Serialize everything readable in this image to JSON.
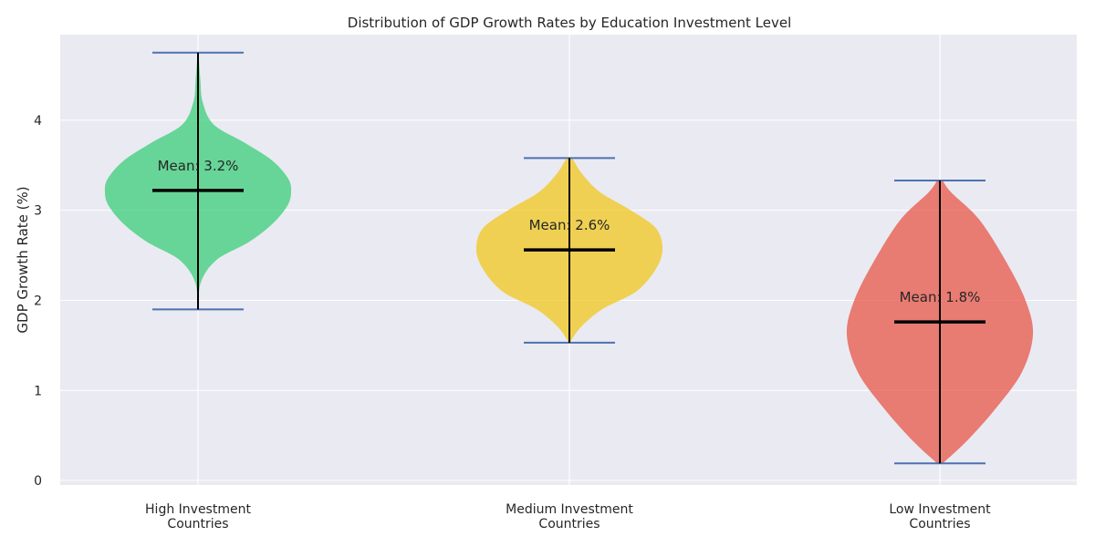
{
  "chart_data": {
    "type": "violin",
    "title": "Distribution of GDP Growth Rates by Education Investment Level",
    "ylabel": "GDP Growth Rate (%)",
    "xlabel": "",
    "ylim": [
      -0.05,
      4.95
    ],
    "yticks": [
      0,
      1,
      2,
      3,
      4
    ],
    "grid": true,
    "colors": {
      "background": "#eaeaf2",
      "grid": "#ffffff",
      "extrema": "#4c72b0",
      "mean": "#000000"
    },
    "series": [
      {
        "category_lines": [
          "High Investment",
          "Countries"
        ],
        "color": "#2ecc71",
        "min": 1.9,
        "max": 4.75,
        "mean": 3.22,
        "mean_label": "Mean: 3.2%",
        "profile": [
          [
            1.9,
            0.005
          ],
          [
            2.2,
            0.03
          ],
          [
            2.45,
            0.2
          ],
          [
            2.65,
            0.55
          ],
          [
            2.85,
            0.8
          ],
          [
            3.05,
            0.96
          ],
          [
            3.2,
            1.0
          ],
          [
            3.35,
            0.97
          ],
          [
            3.55,
            0.8
          ],
          [
            3.75,
            0.5
          ],
          [
            3.95,
            0.17
          ],
          [
            4.2,
            0.05
          ],
          [
            4.45,
            0.025
          ],
          [
            4.75,
            0.005
          ]
        ]
      },
      {
        "category_lines": [
          "Medium Investment",
          "Countries"
        ],
        "color": "#f1c40f",
        "min": 1.53,
        "max": 3.58,
        "mean": 2.56,
        "mean_label": "Mean: 2.6%",
        "profile": [
          [
            1.53,
            0.005
          ],
          [
            1.7,
            0.12
          ],
          [
            1.9,
            0.35
          ],
          [
            2.1,
            0.72
          ],
          [
            2.35,
            0.93
          ],
          [
            2.57,
            1.0
          ],
          [
            2.8,
            0.93
          ],
          [
            3.0,
            0.66
          ],
          [
            3.2,
            0.33
          ],
          [
            3.4,
            0.14
          ],
          [
            3.58,
            0.03
          ]
        ]
      },
      {
        "category_lines": [
          "Low Investment",
          "Countries"
        ],
        "color": "#e74c3c",
        "min": 0.19,
        "max": 3.33,
        "mean": 1.76,
        "mean_label": "Mean: 1.8%",
        "profile": [
          [
            0.19,
            0.03
          ],
          [
            0.45,
            0.3
          ],
          [
            0.8,
            0.6
          ],
          [
            1.2,
            0.88
          ],
          [
            1.62,
            1.0
          ],
          [
            2.0,
            0.92
          ],
          [
            2.45,
            0.7
          ],
          [
            2.9,
            0.42
          ],
          [
            3.2,
            0.12
          ],
          [
            3.33,
            0.03
          ]
        ]
      }
    ]
  }
}
